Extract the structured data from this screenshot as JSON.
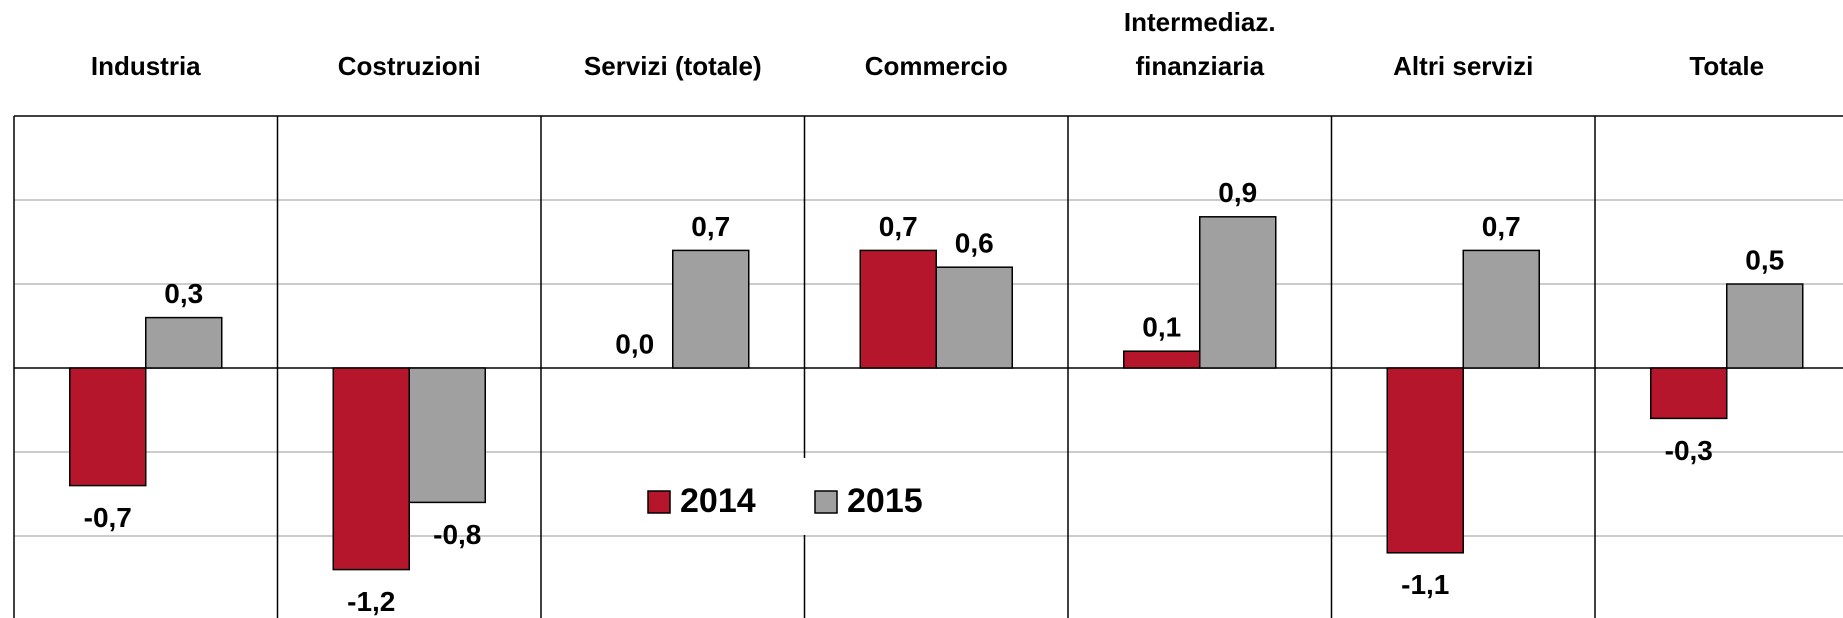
{
  "chart_data": {
    "type": "bar",
    "categories": [
      "Industria",
      "Costruzioni",
      "Servizi (totale)",
      "Commercio",
      "Intermediaz. finanziaria",
      "Altri servizi",
      "Totale"
    ],
    "series": [
      {
        "name": "2014",
        "color": "#b5162b",
        "values": [
          -0.7,
          -1.2,
          0.0,
          0.7,
          0.1,
          -1.1,
          -0.3
        ],
        "value_labels": [
          "-0,7",
          "-1,2",
          "0,0",
          "0,7",
          "0,1",
          "-1,1",
          "-0,3"
        ]
      },
      {
        "name": "2015",
        "color": "#a0a0a0",
        "values": [
          0.3,
          -0.8,
          0.7,
          0.6,
          0.9,
          0.7,
          0.5
        ],
        "value_labels": [
          "0,3",
          "-0,8",
          "0,7",
          "0,6",
          "0,9",
          "0,7",
          "0,5"
        ]
      }
    ],
    "ylim": [
      -1.5,
      1.5
    ],
    "yticks": [
      -1.0,
      -0.5,
      0,
      0.5,
      1.0
    ],
    "grid": true
  }
}
